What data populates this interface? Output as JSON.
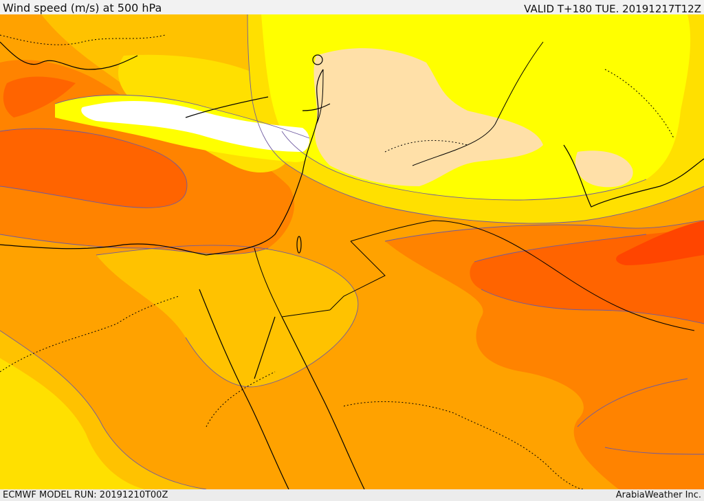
{
  "header": {
    "title": "Wind speed (m/s) at 500 hPa",
    "valid": "VALID T+180 TUE. 20191217T12Z"
  },
  "footer": {
    "model_run": "ECMWF MODEL RUN: 20191210T00Z",
    "provider": "ArabiaWeather Inc."
  },
  "map": {
    "colors": {
      "band_1": "#ffffff",
      "band_2": "#ffe0a8",
      "band_3": "#ffff00",
      "band_4": "#ffe000",
      "band_5": "#ffc200",
      "band_6": "#ffa200",
      "band_7": "#ff8300",
      "band_8": "#ff6400",
      "band_9": "#ff4500",
      "contour": "#6e5aa0",
      "coastline": "#000000",
      "border": "#000000"
    }
  }
}
